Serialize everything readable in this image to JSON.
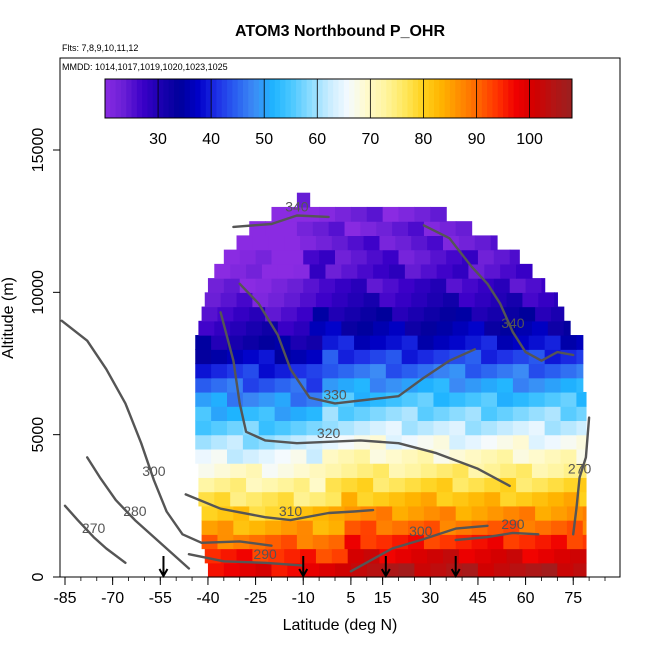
{
  "chart_data": {
    "type": "heatmap",
    "title": "ATOM3 Northbound P_OHR",
    "subtitle_flights": "Flts: 7,8,9,10,11,12",
    "subtitle_dates": "MMDD: 1014,1017,1019,1020,1023,1025",
    "xlabel": "Latitude (deg N)",
    "ylabel": "Altitude (m)",
    "xlim": [
      -85,
      85
    ],
    "ylim": [
      0,
      17500
    ],
    "x_ticks": [
      -85,
      -70,
      -55,
      -40,
      -25,
      -10,
      5,
      15,
      30,
      45,
      60,
      75
    ],
    "x_tick_labels": [
      "-85",
      "-70",
      "-55",
      "-40",
      "-25",
      "-10",
      "5",
      "15",
      "30",
      "45",
      "60",
      "75"
    ],
    "y_ticks": [
      0,
      5000,
      10000,
      15000
    ],
    "y_tick_labels": [
      "0",
      "5000",
      "10000",
      "15000"
    ],
    "colorbar": {
      "range": [
        20,
        108
      ],
      "ticks": [
        30,
        40,
        50,
        60,
        70,
        80,
        90,
        100
      ],
      "tick_labels": [
        "30",
        "40",
        "50",
        "60",
        "70",
        "80",
        "90",
        "100"
      ],
      "colors": [
        "#8a2be2",
        "#6a1fd6",
        "#3b00c8",
        "#1a00b0",
        "#00009b",
        "#0000c8",
        "#1e30e6",
        "#2a5ff0",
        "#3c8cf5",
        "#1eb4ff",
        "#4cc8ff",
        "#8cdcff",
        "#c8ecff",
        "#f4faff",
        "#fffacd",
        "#fff5a0",
        "#ffe860",
        "#ffd21e",
        "#ffb400",
        "#ff8c00",
        "#ff6400",
        "#ff3200",
        "#f00000",
        "#d20000",
        "#b41414",
        "#9a2020"
      ]
    },
    "altitude_profile": [
      {
        "alt": 250,
        "value": 104
      },
      {
        "alt": 750,
        "value": 100
      },
      {
        "alt": 1250,
        "value": 95
      },
      {
        "alt": 1750,
        "value": 90
      },
      {
        "alt": 2250,
        "value": 86
      },
      {
        "alt": 2750,
        "value": 82
      },
      {
        "alt": 3250,
        "value": 78
      },
      {
        "alt": 3750,
        "value": 74
      },
      {
        "alt": 4250,
        "value": 70
      },
      {
        "alt": 4750,
        "value": 66
      },
      {
        "alt": 5250,
        "value": 62
      },
      {
        "alt": 5750,
        "value": 58
      },
      {
        "alt": 6250,
        "value": 54
      },
      {
        "alt": 6750,
        "value": 50
      },
      {
        "alt": 7250,
        "value": 46
      },
      {
        "alt": 7750,
        "value": 42
      },
      {
        "alt": 8250,
        "value": 38
      },
      {
        "alt": 8750,
        "value": 35
      },
      {
        "alt": 9250,
        "value": 32
      },
      {
        "alt": 9750,
        "value": 29
      },
      {
        "alt": 10250,
        "value": 27
      },
      {
        "alt": 10750,
        "value": 26
      },
      {
        "alt": 11250,
        "value": 25
      },
      {
        "alt": 11750,
        "value": 24
      },
      {
        "alt": 12250,
        "value": 23
      },
      {
        "alt": 12750,
        "value": 22
      },
      {
        "alt": 13250,
        "value": 21
      }
    ],
    "data_extent": [
      {
        "alt": 250,
        "lat_min": -40,
        "lat_max": 79
      },
      {
        "alt": 750,
        "lat_min": -41,
        "lat_max": 79
      },
      {
        "alt": 1250,
        "lat_min": -42,
        "lat_max": 79
      },
      {
        "alt": 1750,
        "lat_min": -42,
        "lat_max": 79
      },
      {
        "alt": 2250,
        "lat_min": -42,
        "lat_max": 79
      },
      {
        "alt": 2750,
        "lat_min": -43,
        "lat_max": 79
      },
      {
        "alt": 3250,
        "lat_min": -43,
        "lat_max": 79
      },
      {
        "alt": 3750,
        "lat_min": -43,
        "lat_max": 79
      },
      {
        "alt": 4250,
        "lat_min": -44,
        "lat_max": 79
      },
      {
        "alt": 4750,
        "lat_min": -44,
        "lat_max": 79
      },
      {
        "alt": 5250,
        "lat_min": -44,
        "lat_max": 79
      },
      {
        "alt": 5750,
        "lat_min": -44,
        "lat_max": 79
      },
      {
        "alt": 6250,
        "lat_min": -44,
        "lat_max": 79
      },
      {
        "alt": 6750,
        "lat_min": -44,
        "lat_max": 78
      },
      {
        "alt": 7250,
        "lat_min": -44,
        "lat_max": 78
      },
      {
        "alt": 7750,
        "lat_min": -44,
        "lat_max": 78
      },
      {
        "alt": 8250,
        "lat_min": -44,
        "lat_max": 78
      },
      {
        "alt": 8750,
        "lat_min": -43,
        "lat_max": 74
      },
      {
        "alt": 9250,
        "lat_min": -42,
        "lat_max": 72
      },
      {
        "alt": 9750,
        "lat_min": -41,
        "lat_max": 70
      },
      {
        "alt": 10250,
        "lat_min": -40,
        "lat_max": 66
      },
      {
        "alt": 10750,
        "lat_min": -38,
        "lat_max": 62
      },
      {
        "alt": 11250,
        "lat_min": -35,
        "lat_max": 58
      },
      {
        "alt": 11750,
        "lat_min": -31,
        "lat_max": 51
      },
      {
        "alt": 12250,
        "lat_min": -27,
        "lat_max": 43
      },
      {
        "alt": 12750,
        "lat_min": -20,
        "lat_max": 35
      },
      {
        "alt": 13250,
        "lat_min": -12,
        "lat_max": -8
      }
    ],
    "contours": [
      {
        "level": 270,
        "label": "270",
        "points": [
          [
            -85,
            2500
          ],
          [
            -81,
            2000
          ],
          [
            -76,
            1400
          ],
          [
            -72,
            1000
          ],
          [
            -66,
            500
          ]
        ]
      },
      {
        "level": 270,
        "label": "270",
        "points": [
          [
            80,
            5600
          ],
          [
            79,
            4200
          ],
          [
            77,
            3500
          ],
          [
            76,
            2400
          ],
          [
            75,
            1500
          ]
        ]
      },
      {
        "level": 280,
        "label": "280",
        "points": [
          [
            -78,
            4200
          ],
          [
            -74,
            3500
          ],
          [
            -69,
            2700
          ],
          [
            -63,
            2000
          ],
          [
            -57,
            1400
          ],
          [
            -52,
            900
          ],
          [
            -46,
            300
          ]
        ]
      },
      {
        "level": 290,
        "label": "290",
        "points": [
          [
            -46,
            800
          ],
          [
            -35,
            550
          ],
          [
            -22,
            500
          ],
          [
            -10,
            400
          ]
        ]
      },
      {
        "level": 290,
        "label": "290",
        "points": [
          [
            38,
            1300
          ],
          [
            48,
            1400
          ],
          [
            56,
            1550
          ],
          [
            64,
            1500
          ]
        ]
      },
      {
        "level": 300,
        "label": "300",
        "points": [
          [
            -86,
            9000
          ],
          [
            -78,
            8300
          ],
          [
            -72,
            7300
          ],
          [
            -66,
            6100
          ],
          [
            -61,
            4700
          ],
          [
            -57,
            3400
          ],
          [
            -53,
            2300
          ],
          [
            -48,
            1500
          ],
          [
            -42,
            1200
          ],
          [
            -30,
            1250
          ],
          [
            -20,
            1100
          ]
        ]
      },
      {
        "level": 300,
        "label": "300",
        "points": [
          [
            5,
            200
          ],
          [
            18,
            1000
          ],
          [
            27,
            1300
          ],
          [
            38,
            1700
          ],
          [
            48,
            1800
          ]
        ]
      },
      {
        "level": 310,
        "label": "310",
        "points": [
          [
            -47,
            2900
          ],
          [
            -36,
            2400
          ],
          [
            -22,
            2100
          ],
          [
            -14,
            2000
          ],
          [
            -2,
            2250
          ],
          [
            6,
            2300
          ],
          [
            12,
            2350
          ]
        ]
      },
      {
        "level": 320,
        "label": "320",
        "points": [
          [
            -36,
            9300
          ],
          [
            -32,
            7600
          ],
          [
            -30,
            6100
          ],
          [
            -28,
            5100
          ],
          [
            -22,
            4800
          ],
          [
            -12,
            4700
          ],
          [
            -2,
            4750
          ],
          [
            8,
            4800
          ],
          [
            20,
            4700
          ],
          [
            32,
            4350
          ],
          [
            45,
            3800
          ],
          [
            55,
            3200
          ]
        ]
      },
      {
        "level": 330,
        "label": "330",
        "points": [
          [
            -30,
            10300
          ],
          [
            -24,
            9600
          ],
          [
            -18,
            8500
          ],
          [
            -14,
            7300
          ],
          [
            -8,
            6300
          ],
          [
            0,
            6100
          ],
          [
            8,
            6200
          ],
          [
            20,
            6350
          ],
          [
            28,
            7000
          ],
          [
            36,
            7600
          ],
          [
            44,
            8000
          ]
        ]
      },
      {
        "level": 340,
        "label": "340",
        "points": [
          [
            -32,
            12300
          ],
          [
            -20,
            12400
          ],
          [
            -12,
            12700
          ],
          [
            -2,
            12650
          ]
        ]
      },
      {
        "level": 340,
        "label": "340",
        "points": [
          [
            28,
            12350
          ],
          [
            36,
            11900
          ],
          [
            43,
            10900
          ],
          [
            48,
            10300
          ],
          [
            52,
            9600
          ],
          [
            56,
            8600
          ],
          [
            60,
            7900
          ],
          [
            65,
            7600
          ],
          [
            70,
            7900
          ],
          [
            75,
            7800
          ]
        ]
      }
    ],
    "arrows_lat": [
      -54,
      -10,
      16,
      38
    ]
  }
}
